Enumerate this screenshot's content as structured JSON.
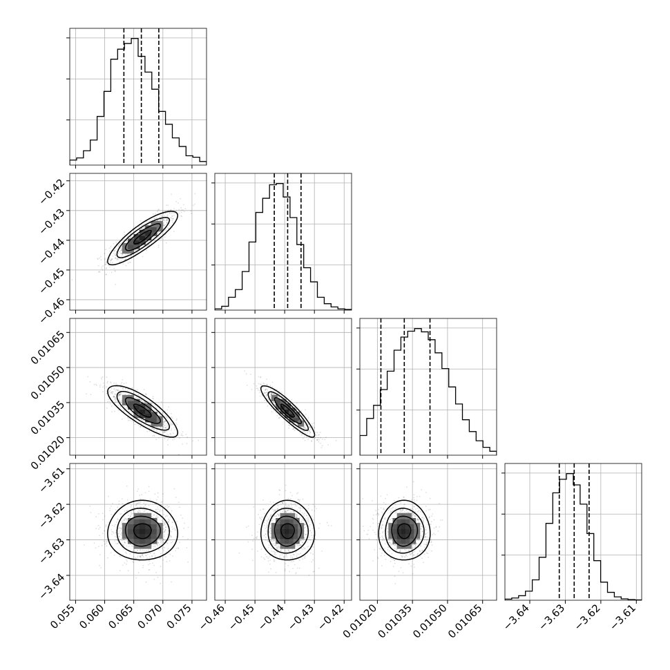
{
  "chart_data": {
    "type": "corner",
    "grid": true,
    "parameters": [
      {
        "range": [
          0.054,
          0.0775
        ],
        "ticks": [
          0.055,
          0.06,
          0.065,
          0.07,
          0.075
        ],
        "tick_labels": [
          "0.055",
          "0.060",
          "0.065",
          "0.070",
          "0.075"
        ],
        "mean": 0.0665,
        "sd": 0.003,
        "quantiles": [
          0.0633,
          0.0663,
          0.0693
        ],
        "hist_bins": [
          0.0035,
          0.005,
          0.01,
          0.0175,
          0.034,
          0.0515,
          0.074,
          0.081,
          0.085,
          0.0885,
          0.076,
          0.065,
          0.053,
          0.0375,
          0.0285,
          0.019,
          0.013,
          0.0065,
          0.0055,
          0.0025
        ]
      },
      {
        "range": [
          -0.4635,
          -0.4175
        ],
        "ticks": [
          -0.46,
          -0.45,
          -0.44,
          -0.43,
          -0.42
        ],
        "tick_labels": [
          "−0.46",
          "−0.45",
          "−0.44",
          "−0.43",
          "−0.42"
        ],
        "mean": -0.439,
        "sd": 0.0045,
        "quantiles": [
          -0.4435,
          -0.439,
          -0.4345
        ],
        "hist_bins": [
          0.001,
          0.003,
          0.01,
          0.016,
          0.03,
          0.053,
          0.076,
          0.087,
          0.0975,
          0.0985,
          0.088,
          0.072,
          0.051,
          0.033,
          0.022,
          0.01,
          0.005,
          0.0025,
          0.001,
          0.0005
        ]
      },
      {
        "range": [
          0.010125,
          0.01071
        ],
        "ticks": [
          0.0102,
          0.01035,
          0.0105,
          0.01065
        ],
        "tick_labels": [
          "0.01020",
          "0.01035",
          "0.01050",
          "0.01065"
        ],
        "mean": 0.010315,
        "sd": 5.5e-05,
        "quantiles": [
          0.010215,
          0.010315,
          0.010425
        ],
        "hist_bins": [
          0.015,
          0.028,
          0.038,
          0.05,
          0.064,
          0.08,
          0.09,
          0.0945,
          0.0965,
          0.094,
          0.088,
          0.078,
          0.066,
          0.052,
          0.039,
          0.027,
          0.018,
          0.011,
          0.006,
          0.003
        ]
      },
      {
        "range": [
          -3.647,
          -3.6085
        ],
        "ticks": [
          -3.64,
          -3.63,
          -3.62,
          -3.61
        ],
        "tick_labels": [
          "−3.64",
          "−3.63",
          "−3.62",
          "−3.61"
        ],
        "mean": -3.6275,
        "sd": 0.0042,
        "quantiles": [
          -3.6317,
          -3.6275,
          -3.6233
        ],
        "hist_bins": [
          0.001,
          0.002,
          0.004,
          0.008,
          0.018,
          0.038,
          0.068,
          0.095,
          0.107,
          0.112,
          0.102,
          0.085,
          0.059,
          0.035,
          0.016,
          0.007,
          0.003,
          0.0012,
          0.0006,
          0.0003
        ]
      }
    ],
    "correlations": {
      "1-0": 0.85,
      "2-0": -0.8,
      "2-1": -0.9,
      "3-0": 0.0,
      "3-1": 0.0,
      "3-2": 0.0
    },
    "contour_levels_sigma": [
      0.5,
      1.0,
      1.5,
      2.0
    ]
  }
}
